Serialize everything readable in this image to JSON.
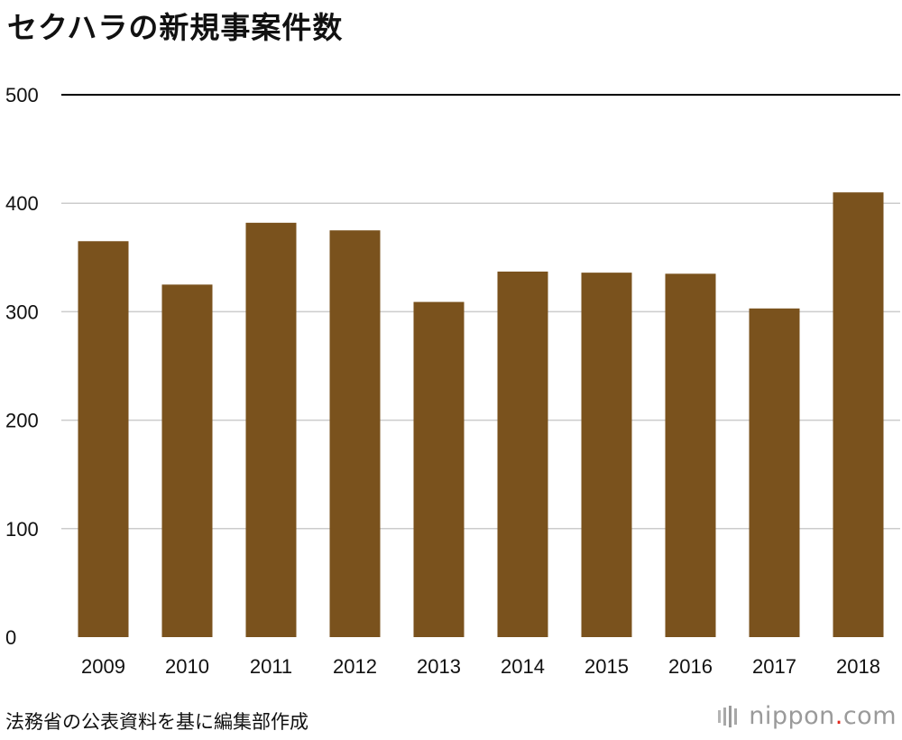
{
  "title": "セクハラの新規事案件数",
  "source": "法務省の公表資料を基に編集部作成",
  "brand": {
    "name_part1": "nippon",
    "dot": ".",
    "name_part2": "com",
    "icon": "nippon-logo-icon"
  },
  "colors": {
    "bar": "#7a521d",
    "grid": "#cccccc",
    "axis_top": "#000000",
    "text": "#111111",
    "brand_dot": "#e1251b"
  },
  "chart_data": {
    "type": "bar",
    "categories": [
      "2009",
      "2010",
      "2011",
      "2012",
      "2013",
      "2014",
      "2015",
      "2016",
      "2017",
      "2018"
    ],
    "values": [
      365,
      325,
      382,
      375,
      309,
      337,
      336,
      335,
      303,
      410
    ],
    "title": "セクハラの新規事案件数",
    "xlabel": "",
    "ylabel": "",
    "ylim": [
      0,
      500
    ],
    "yticks": [
      0,
      100,
      200,
      300,
      400,
      500
    ],
    "grid": true,
    "legend": "none"
  }
}
